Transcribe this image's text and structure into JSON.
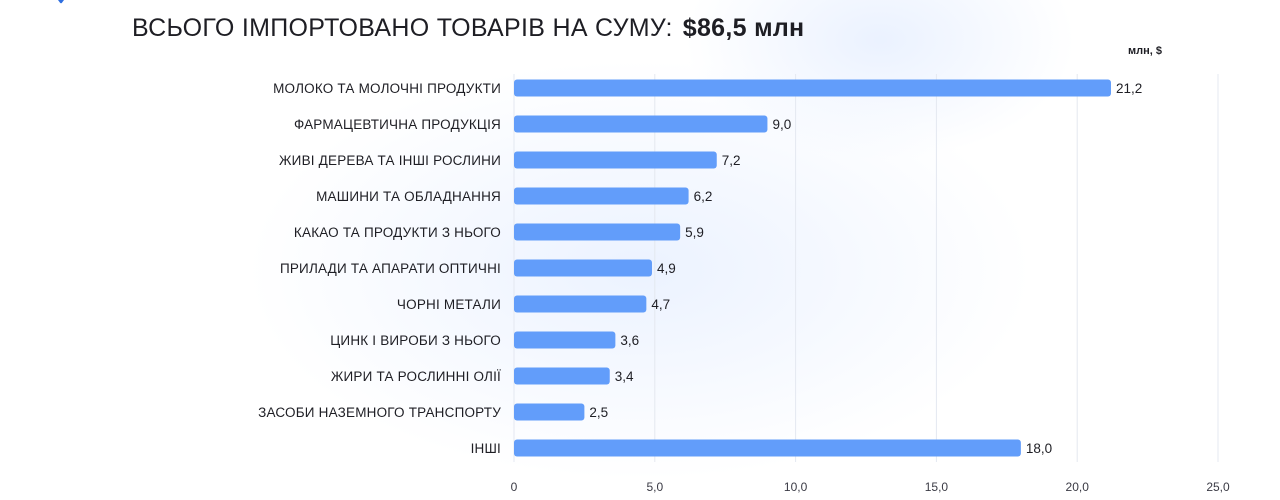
{
  "header": {
    "title_lead": "ВСЬОГО ІМПОРТОВАНО ТОВАРІВ НА СУМУ:",
    "title_total": "$86,5 млн",
    "unit_label": "млн, $"
  },
  "colors": {
    "bar": "#629dfa",
    "grid": "#e4e8f0",
    "text": "#1e1e24",
    "accent_mark": "#2f6fe0"
  },
  "chart_data": {
    "type": "bar",
    "orientation": "horizontal",
    "categories": [
      "МОЛОКО ТА МОЛОЧНІ ПРОДУКТИ",
      "ФАРМАЦЕВТИЧНА ПРОДУКЦІЯ",
      "ЖИВІ ДЕРЕВА ТА ІНШІ РОСЛИНИ",
      "МАШИНИ ТА ОБЛАДНАННЯ",
      "КАКАО ТА ПРОДУКТИ З НЬОГО",
      "ПРИЛАДИ ТА АПАРАТИ ОПТИЧНІ",
      "ЧОРНІ МЕТАЛИ",
      "ЦИНК І ВИРОБИ З НЬОГО",
      "ЖИРИ ТА РОСЛИННІ ОЛІЇ",
      "ЗАСОБИ НАЗЕМНОГО ТРАНСПОРТУ",
      "ІНШІ"
    ],
    "values": [
      21.2,
      9.0,
      7.2,
      6.2,
      5.9,
      4.9,
      4.7,
      3.6,
      3.4,
      2.5,
      18.0
    ],
    "value_labels": [
      "21,2",
      "9,0",
      "7,2",
      "6,2",
      "5,9",
      "4,9",
      "4,7",
      "3,6",
      "3,4",
      "2,5",
      "18,0"
    ],
    "xticks": [
      0,
      5,
      10,
      15,
      20,
      25
    ],
    "xtick_labels": [
      "0",
      "5,0",
      "10,0",
      "15,0",
      "20,0",
      "25,0"
    ],
    "xlim": [
      0,
      25
    ],
    "grid": true,
    "title": "ВСЬОГО ІМПОРТОВАНО ТОВАРІВ НА СУМУ: $86,5 млн",
    "xlabel": "",
    "ylabel": "",
    "unit": "млн, $"
  }
}
